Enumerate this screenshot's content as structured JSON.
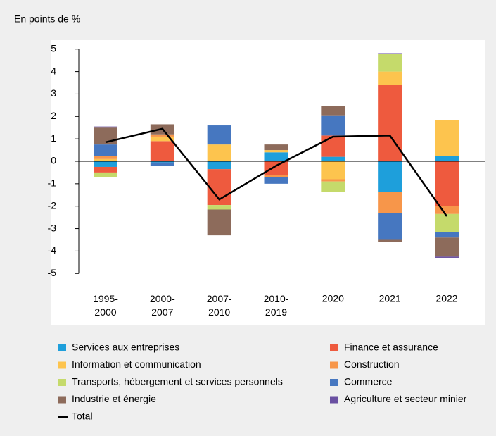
{
  "chart_data": {
    "type": "bar",
    "stacked": true,
    "y_axis_label": "En points de %",
    "categories": [
      "1995-2000",
      "2000-2007",
      "2007-2010",
      "2010-2019",
      "2020",
      "2021",
      "2022"
    ],
    "ylim": [
      -5.4,
      5.4
    ],
    "yticks": [
      5,
      4,
      3,
      2,
      1,
      0,
      -1,
      -2,
      -3,
      -4,
      -5
    ],
    "series": [
      {
        "name": "Services aux entreprises",
        "color": "#1e9fdb",
        "values": [
          -0.25,
          -0.05,
          -0.35,
          0.4,
          0.2,
          -1.35,
          0.25
        ]
      },
      {
        "name": "Finance et assurance",
        "color": "#ee5a3e",
        "values": [
          -0.25,
          0.9,
          -1.6,
          -0.6,
          0.95,
          3.4,
          -2.0
        ]
      },
      {
        "name": "Information et communication",
        "color": "#fdc44e",
        "values": [
          0.1,
          0.2,
          0.75,
          0.1,
          -0.8,
          0.6,
          1.6
        ]
      },
      {
        "name": "Construction",
        "color": "#f7964a",
        "values": [
          0.15,
          0.1,
          0,
          -0.1,
          -0.1,
          -0.95,
          -0.35
        ]
      },
      {
        "name": "Transports, hébergement et services personnels",
        "color": "#c5da6b",
        "values": [
          -0.2,
          0,
          -0.2,
          0,
          -0.45,
          0.8,
          -0.8
        ]
      },
      {
        "name": "Commerce",
        "color": "#4677c0",
        "values": [
          0.5,
          -0.15,
          0.85,
          -0.3,
          0.9,
          -1.2,
          -0.25
        ]
      },
      {
        "name": "Industrie et énergie",
        "color": "#8d6b5b",
        "values": [
          0.75,
          0.45,
          -1.15,
          0.25,
          0.4,
          -0.1,
          -0.85
        ]
      },
      {
        "name": "Agriculture et secteur minier",
        "color": "#6a50a2",
        "values": [
          0.05,
          0,
          0,
          0,
          0,
          0.02,
          -0.05
        ]
      }
    ],
    "line_series": {
      "name": "Total",
      "color": "#000000",
      "values": [
        0.85,
        1.45,
        -1.7,
        -0.2,
        1.1,
        1.15,
        -2.45
      ]
    }
  }
}
